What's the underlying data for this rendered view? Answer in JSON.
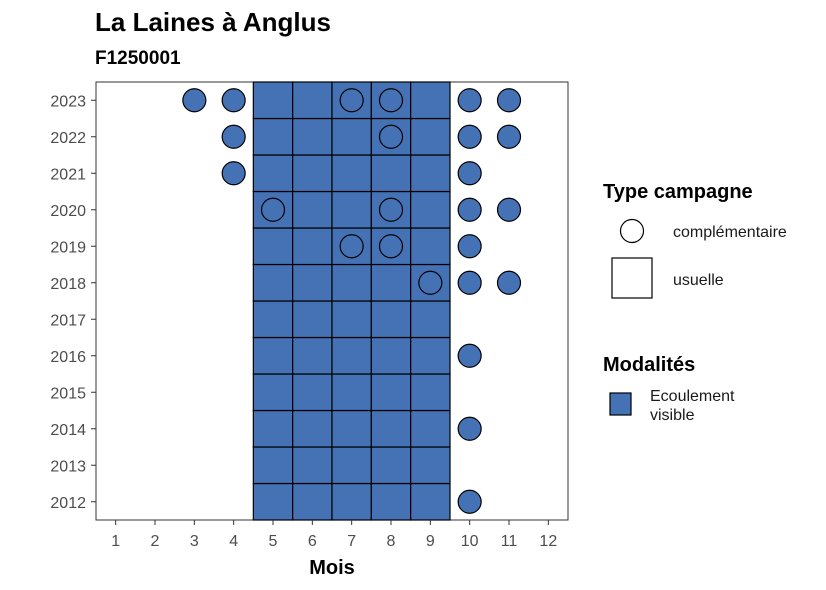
{
  "chart_data": {
    "type": "heatmap",
    "title": "La Laines à Anglus",
    "subtitle": "F1250001",
    "xlabel": "Mois",
    "ylabel": "",
    "x_ticks": [
      1,
      2,
      3,
      4,
      5,
      6,
      7,
      8,
      9,
      10,
      11,
      12
    ],
    "y_ticks": [
      2012,
      2013,
      2014,
      2015,
      2016,
      2017,
      2018,
      2019,
      2020,
      2021,
      2022,
      2023
    ],
    "xlim": [
      0.5,
      12.5
    ],
    "ylim": [
      2011.5,
      2023.5
    ],
    "fill_color": "#4472b4",
    "usuelle_months": [
      5,
      6,
      7,
      8,
      9
    ],
    "usuelle_years": [
      2012,
      2013,
      2014,
      2015,
      2016,
      2017,
      2018,
      2019,
      2020,
      2021,
      2022,
      2023
    ],
    "complementaire_filled": [
      {
        "year": 2023,
        "months": [
          3,
          4,
          10,
          11
        ]
      },
      {
        "year": 2022,
        "months": [
          4,
          10,
          11
        ]
      },
      {
        "year": 2021,
        "months": [
          4,
          10
        ]
      },
      {
        "year": 2020,
        "months": [
          10,
          11
        ]
      },
      {
        "year": 2019,
        "months": [
          10
        ]
      },
      {
        "year": 2018,
        "months": [
          10,
          11
        ]
      },
      {
        "year": 2016,
        "months": [
          10
        ]
      },
      {
        "year": 2014,
        "months": [
          10
        ]
      },
      {
        "year": 2012,
        "months": [
          10
        ]
      }
    ],
    "complementaire_outline": [
      {
        "year": 2023,
        "months": [
          7,
          8
        ]
      },
      {
        "year": 2022,
        "months": [
          8
        ]
      },
      {
        "year": 2020,
        "months": [
          5,
          8
        ]
      },
      {
        "year": 2019,
        "months": [
          7,
          8
        ]
      },
      {
        "year": 2018,
        "months": [
          9
        ]
      }
    ],
    "legend": {
      "shape_title": "Type campagne",
      "shape_items": [
        {
          "label": "complémentaire",
          "shape": "circle"
        },
        {
          "label": "usuelle",
          "shape": "square"
        }
      ],
      "fill_title": "Modalités",
      "fill_items": [
        {
          "label_line1": "Ecoulement",
          "label_line2": "visible",
          "color": "#4472b4"
        }
      ],
      "position": "right"
    },
    "grid": false
  }
}
